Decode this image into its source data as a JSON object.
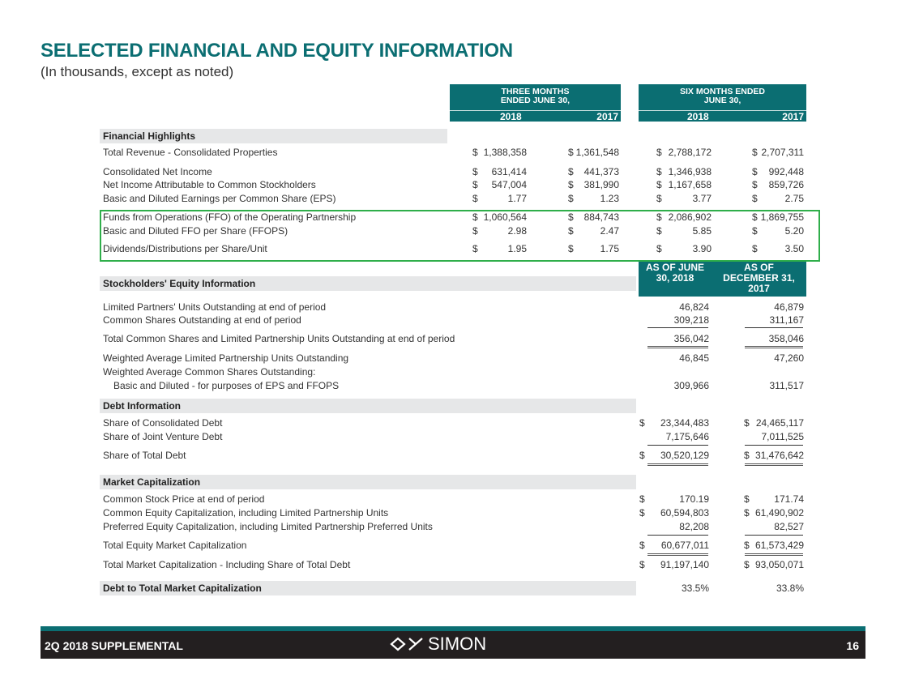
{
  "title": "SELECTED FINANCIAL AND EQUITY INFORMATION",
  "subtitle": "(In thousands, except as noted)",
  "headers": {
    "three_months": "THREE MONTHS ENDED JUNE 30,",
    "six_months": "SIX MONTHS ENDED JUNE 30,",
    "years": [
      "2018",
      "2017",
      "2018",
      "2017"
    ],
    "as_of_june": "AS OF JUNE 30, 2018",
    "as_of_dec": "AS OF DECEMBER 31, 2017"
  },
  "financial_highlights": {
    "heading": "Financial Highlights",
    "rows": [
      {
        "label": "Total Revenue - Consolidated Properties",
        "cells": [
          [
            "$",
            "1,388,358"
          ],
          [
            "$",
            "1,361,548"
          ],
          [
            "$",
            "2,788,172"
          ],
          [
            "$",
            "2,707,311"
          ]
        ]
      },
      {
        "label": "Consolidated Net Income",
        "cells": [
          [
            "$",
            "631,414"
          ],
          [
            "$",
            "441,373"
          ],
          [
            "$",
            "1,346,938"
          ],
          [
            "$",
            "992,448"
          ]
        ]
      },
      {
        "label": "Net Income Attributable to Common Stockholders",
        "cells": [
          [
            "$",
            "547,004"
          ],
          [
            "$",
            "381,990"
          ],
          [
            "$",
            "1,167,658"
          ],
          [
            "$",
            "859,726"
          ]
        ]
      },
      {
        "label": "Basic and Diluted Earnings per Common Share (EPS)",
        "cells": [
          [
            "$",
            "1.77"
          ],
          [
            "$",
            "1.23"
          ],
          [
            "$",
            "3.77"
          ],
          [
            "$",
            "2.75"
          ]
        ]
      },
      {
        "label": "Funds from Operations (FFO) of the Operating Partnership",
        "cells": [
          [
            "$",
            "1,060,564"
          ],
          [
            "$",
            "884,743"
          ],
          [
            "$",
            "2,086,902"
          ],
          [
            "$",
            "1,869,755"
          ]
        ]
      },
      {
        "label": "Basic and Diluted FFO per Share (FFOPS)",
        "cells": [
          [
            "$",
            "2.98"
          ],
          [
            "$",
            "2.47"
          ],
          [
            "$",
            "5.85"
          ],
          [
            "$",
            "5.20"
          ]
        ]
      },
      {
        "label": "Dividends/Distributions per Share/Unit",
        "cells": [
          [
            "$",
            "1.95"
          ],
          [
            "$",
            "1.75"
          ],
          [
            "$",
            "3.90"
          ],
          [
            "$",
            "3.50"
          ]
        ]
      }
    ]
  },
  "stockholders_equity": {
    "heading": "Stockholders' Equity Information",
    "rows": [
      {
        "label": "Limited Partners' Units Outstanding at end of period",
        "cells": [
          [
            "",
            "46,824"
          ],
          [
            "",
            "46,879"
          ]
        ]
      },
      {
        "label": "Common Shares Outstanding at end of period",
        "cells": [
          [
            "",
            "309,218"
          ],
          [
            "",
            "311,167"
          ]
        ]
      },
      {
        "label": "Total Common Shares and Limited Partnership Units Outstanding at end of period",
        "cells": [
          [
            "",
            "356,042"
          ],
          [
            "",
            "358,046"
          ]
        ]
      },
      {
        "label": "Weighted Average Limited Partnership Units Outstanding",
        "cells": [
          [
            "",
            "46,845"
          ],
          [
            "",
            "47,260"
          ]
        ]
      },
      {
        "label": "Weighted Average Common Shares Outstanding:",
        "cells": []
      },
      {
        "label": "Basic and Diluted - for purposes of EPS and FFOPS",
        "cells": [
          [
            "",
            "309,966"
          ],
          [
            "",
            "311,517"
          ]
        ]
      }
    ]
  },
  "debt": {
    "heading": "Debt Information",
    "rows": [
      {
        "label": "Share of Consolidated Debt",
        "cells": [
          [
            "$",
            "23,344,483"
          ],
          [
            "$",
            "24,465,117"
          ]
        ]
      },
      {
        "label": "Share of Joint Venture Debt",
        "cells": [
          [
            "",
            "7,175,646"
          ],
          [
            "",
            "7,011,525"
          ]
        ]
      },
      {
        "label": "Share of Total Debt",
        "cells": [
          [
            "$",
            "30,520,129"
          ],
          [
            "$",
            "31,476,642"
          ]
        ]
      }
    ]
  },
  "market_cap": {
    "heading": "Market Capitalization",
    "rows": [
      {
        "label": "Common Stock Price at end of period",
        "cells": [
          [
            "$",
            "170.19"
          ],
          [
            "$",
            "171.74"
          ]
        ]
      },
      {
        "label": "Common Equity Capitalization, including Limited Partnership Units",
        "cells": [
          [
            "$",
            "60,594,803"
          ],
          [
            "$",
            "61,490,902"
          ]
        ]
      },
      {
        "label": "Preferred Equity Capitalization, including Limited Partnership Preferred Units",
        "cells": [
          [
            "",
            "82,208"
          ],
          [
            "",
            "82,527"
          ]
        ]
      },
      {
        "label": "Total Equity Market Capitalization",
        "cells": [
          [
            "$",
            "60,677,011"
          ],
          [
            "$",
            "61,573,429"
          ]
        ]
      },
      {
        "label": "Total Market Capitalization - Including Share of Total Debt",
        "cells": [
          [
            "$",
            "91,197,140"
          ],
          [
            "$",
            "93,050,071"
          ]
        ]
      }
    ]
  },
  "debt_to_market": {
    "heading": "Debt to Total Market Capitalization",
    "values": [
      "33.5%",
      "33.8%"
    ]
  },
  "footer": {
    "left": "2Q 2018 SUPPLEMENTAL",
    "logo": "SIMON",
    "page": "16"
  },
  "colors": {
    "teal": "#0b6e72",
    "highlight": "#2fae4a",
    "footer": "#231f20"
  }
}
